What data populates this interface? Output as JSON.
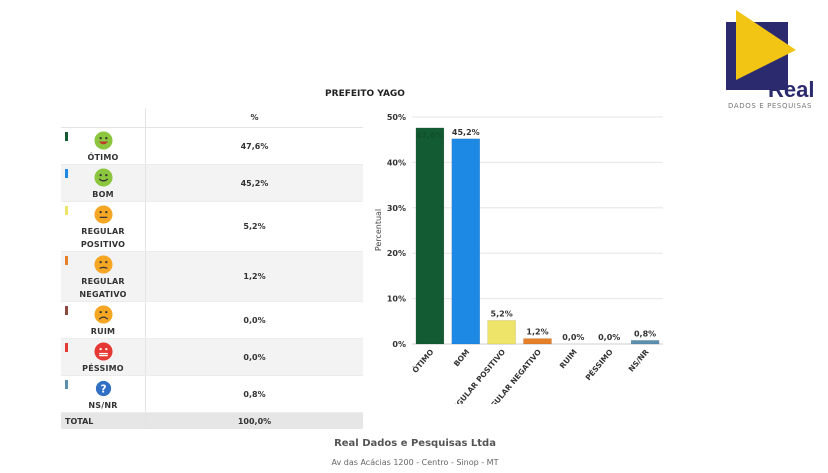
{
  "header": {
    "logo_word": "Real",
    "logo_sub": "DADOS E PESQUISAS"
  },
  "chart_title": "PREFEITO YAGO",
  "table": {
    "col_header": "%",
    "rows": [
      {
        "label": "ÓTIMO",
        "value": "47,6%",
        "color": "#135c33",
        "face": "laugh"
      },
      {
        "label": "BOM",
        "value": "45,2%",
        "color": "#1e88e5",
        "face": "smile"
      },
      {
        "label": "REGULAR POSITIVO",
        "value": "5,2%",
        "color": "#efe46a",
        "face": "neutral"
      },
      {
        "label": "REGULAR NEGATIVO",
        "value": "1,2%",
        "color": "#e57f2a",
        "face": "neutral-neg"
      },
      {
        "label": "RUIM",
        "value": "0,0%",
        "color": "#8b4a3d",
        "face": "sad"
      },
      {
        "label": "PÉSSIMO",
        "value": "0,0%",
        "color": "#e53935",
        "face": "angry"
      },
      {
        "label": "NS/NR",
        "value": "0,8%",
        "color": "#5b8fb0",
        "face": "question"
      }
    ],
    "total_label": "TOTAL",
    "total_value": "100,0%"
  },
  "chart_data": {
    "type": "bar",
    "title": "PREFEITO YAGO",
    "categories": [
      "ÓTIMO",
      "BOM",
      "REGULAR POSITIVO",
      "REGULAR NEGATIVO",
      "RUIM",
      "PÉSSIMO",
      "NS/NR"
    ],
    "values": [
      47.6,
      45.2,
      5.2,
      1.2,
      0.0,
      0.0,
      0.8
    ],
    "value_labels": [
      "47,6%",
      "45,2%",
      "5,2%",
      "1,2%",
      "0,0%",
      "0,0%",
      "0,8%"
    ],
    "colors": [
      "#135c33",
      "#1e88e5",
      "#efe46a",
      "#e57f2a",
      "#8b4a3d",
      "#e53935",
      "#5b8fb0"
    ],
    "ylabel": "Percentual",
    "xlabel": "",
    "ylim": [
      0,
      50
    ],
    "yticks": [
      "0%",
      "10%",
      "20%",
      "30%",
      "40%",
      "50%"
    ],
    "ytick_values": [
      0,
      10,
      20,
      30,
      40,
      50
    ]
  },
  "footer": {
    "company": "Real Dados e Pesquisas Ltda",
    "address": "Av das Acácias 1200 - Centro - Sinop - MT"
  }
}
